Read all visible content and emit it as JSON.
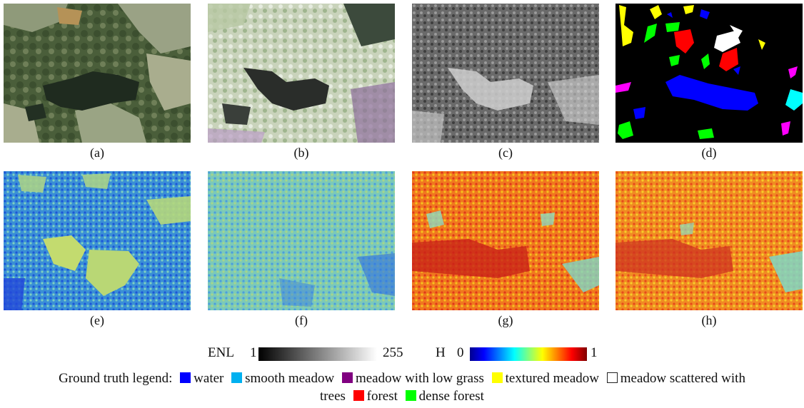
{
  "panels": [
    {
      "caption": "(a)",
      "kind": "optical"
    },
    {
      "caption": "(b)",
      "kind": "pauli"
    },
    {
      "caption": "(c)",
      "kind": "gray"
    },
    {
      "caption": "(d)",
      "kind": "groundtruth"
    },
    {
      "caption": "(e)",
      "kind": "enl-map-1"
    },
    {
      "caption": "(f)",
      "kind": "enl-map-2"
    },
    {
      "caption": "(g)",
      "kind": "entropy-map-1"
    },
    {
      "caption": "(h)",
      "kind": "entropy-map-2"
    }
  ],
  "colorbars": {
    "enl": {
      "name": "ENL",
      "min": "1",
      "max": "255",
      "colormap": "gray"
    },
    "h": {
      "name": "H",
      "min": "0",
      "max": "1",
      "colormap": "jet"
    }
  },
  "legend": {
    "prefix": "Ground truth legend:",
    "items": [
      {
        "label": "water",
        "color": "#0000ff"
      },
      {
        "label": "smooth meadow",
        "color": "#00b0f0"
      },
      {
        "label": "meadow with low grass",
        "color": "#800080"
      },
      {
        "label": "textured meadow",
        "color": "#ffff00"
      },
      {
        "label": "meadow scattered with",
        "color": "#ffffff"
      },
      {
        "label": "trees",
        "color": ""
      },
      {
        "label": "forest",
        "color": "#ff0000"
      },
      {
        "label": "dense forest",
        "color": "#00ff00"
      }
    ]
  }
}
